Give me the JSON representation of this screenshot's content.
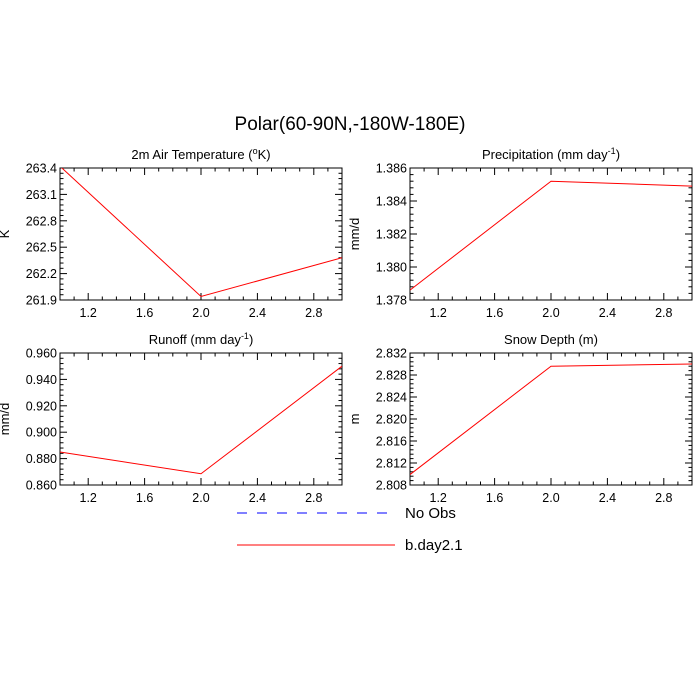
{
  "figure": {
    "title": "Polar(60-90N,-180W-180E)"
  },
  "legend": [
    {
      "label": "No Obs",
      "color": "#0000ff",
      "style": "dashed"
    },
    {
      "label": "b.day2.1",
      "color": "#ff0000",
      "style": "solid"
    }
  ],
  "chart_data": [
    {
      "type": "line",
      "title": "2m Air Temperature (°K)",
      "title_main": "2m Air Temperature (",
      "title_sup": "o",
      "title_end": "K)",
      "xlabel": "",
      "ylabel": "K",
      "xlim": [
        1.0,
        3.0
      ],
      "ylim": [
        261.9,
        263.4
      ],
      "xticks": [
        1.2,
        1.6,
        2.0,
        2.4,
        2.8
      ],
      "xtick_labels": [
        "1.2",
        "1.6",
        "2.0",
        "2.4",
        "2.8"
      ],
      "yticks": [
        261.9,
        262.2,
        262.5,
        262.8,
        263.1,
        263.4
      ],
      "ytick_labels": [
        "261.9",
        "262.2",
        "262.5",
        "262.8",
        "263.1",
        "263.4"
      ],
      "series": [
        {
          "name": "b.day2.1",
          "color": "#ff0000",
          "x": [
            1.0,
            2.0,
            3.0
          ],
          "y": [
            263.42,
            261.94,
            262.38
          ]
        }
      ]
    },
    {
      "type": "line",
      "title": "Precipitation (mm day-1)",
      "title_main": "Precipitation (mm day",
      "title_sup": "-1",
      "title_end": ")",
      "xlabel": "",
      "ylabel": "mm/d",
      "xlim": [
        1.0,
        3.0
      ],
      "ylim": [
        1.378,
        1.386
      ],
      "xticks": [
        1.2,
        1.6,
        2.0,
        2.4,
        2.8
      ],
      "xtick_labels": [
        "1.2",
        "1.6",
        "2.0",
        "2.4",
        "2.8"
      ],
      "yticks": [
        1.378,
        1.38,
        1.382,
        1.384,
        1.386
      ],
      "ytick_labels": [
        "1.378",
        "1.380",
        "1.382",
        "1.384",
        "1.386"
      ],
      "series": [
        {
          "name": "b.day2.1",
          "color": "#ff0000",
          "x": [
            1.0,
            2.0,
            3.0
          ],
          "y": [
            1.3786,
            1.3852,
            1.3849
          ]
        }
      ]
    },
    {
      "type": "line",
      "title": "Runoff (mm day-1)",
      "title_main": "Runoff (mm day",
      "title_sup": "-1",
      "title_end": ")",
      "xlabel": "",
      "ylabel": "mm/d",
      "xlim": [
        1.0,
        3.0
      ],
      "ylim": [
        0.86,
        0.96
      ],
      "xticks": [
        1.2,
        1.6,
        2.0,
        2.4,
        2.8
      ],
      "xtick_labels": [
        "1.2",
        "1.6",
        "2.0",
        "2.4",
        "2.8"
      ],
      "yticks": [
        0.86,
        0.88,
        0.9,
        0.92,
        0.94,
        0.96
      ],
      "ytick_labels": [
        "0.860",
        "0.880",
        "0.900",
        "0.920",
        "0.940",
        "0.960"
      ],
      "series": [
        {
          "name": "b.day2.1",
          "color": "#ff0000",
          "x": [
            1.0,
            2.0,
            3.0
          ],
          "y": [
            0.885,
            0.8685,
            0.95
          ]
        }
      ]
    },
    {
      "type": "line",
      "title": "Snow Depth (m)",
      "title_main": "Snow Depth (m)",
      "title_sup": "",
      "title_end": "",
      "xlabel": "",
      "ylabel": "m",
      "xlim": [
        1.0,
        3.0
      ],
      "ylim": [
        2.808,
        2.832
      ],
      "xticks": [
        1.2,
        1.6,
        2.0,
        2.4,
        2.8
      ],
      "xtick_labels": [
        "1.2",
        "1.6",
        "2.0",
        "2.4",
        "2.8"
      ],
      "yticks": [
        2.808,
        2.812,
        2.816,
        2.82,
        2.824,
        2.828,
        2.832
      ],
      "ytick_labels": [
        "2.808",
        "2.812",
        "2.816",
        "2.820",
        "2.824",
        "2.828",
        "2.832"
      ],
      "series": [
        {
          "name": "b.day2.1",
          "color": "#ff0000",
          "x": [
            1.0,
            2.0,
            3.0
          ],
          "y": [
            2.8099,
            2.8296,
            2.83
          ]
        }
      ]
    }
  ]
}
